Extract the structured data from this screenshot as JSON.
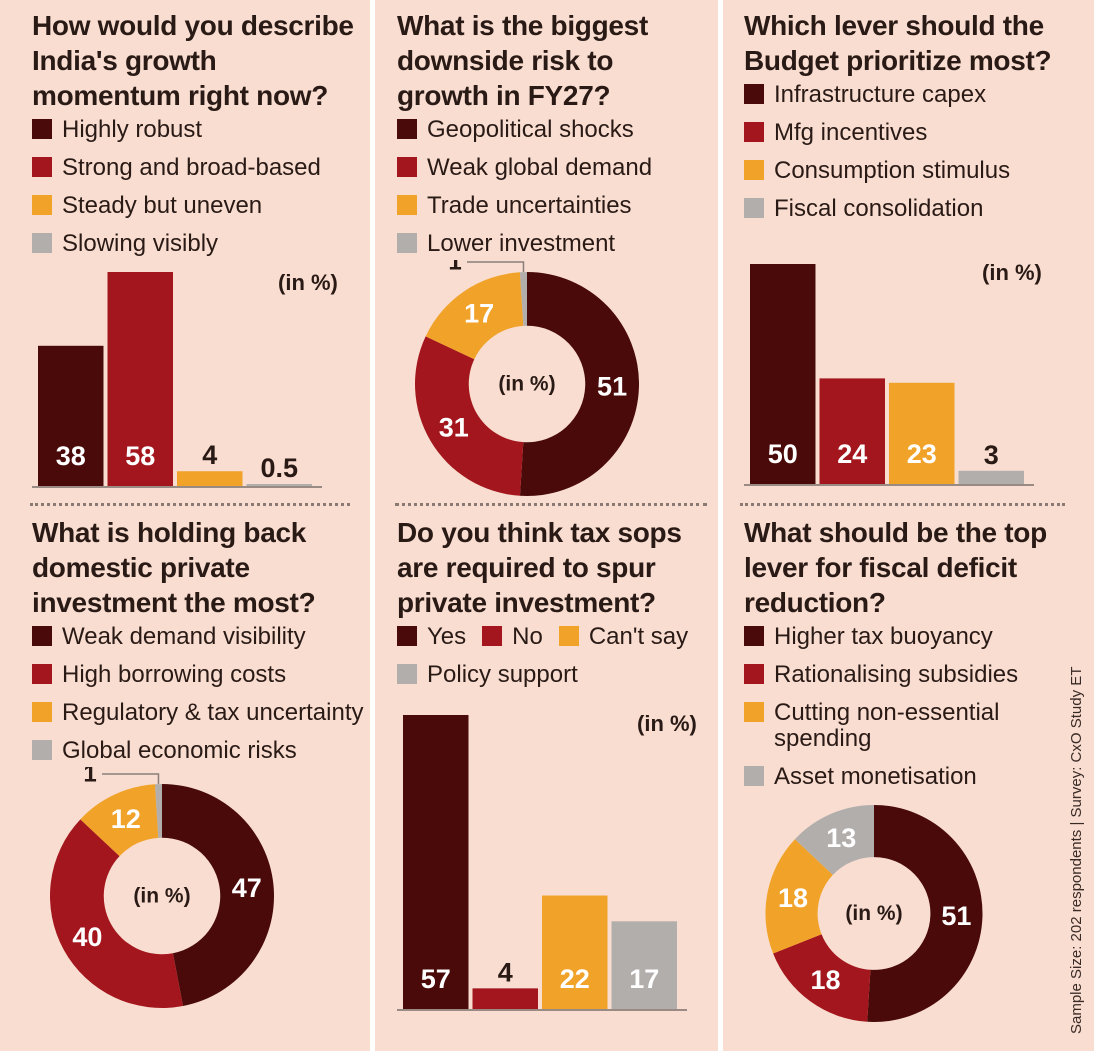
{
  "colors": {
    "dark": "#4a0a09",
    "red": "#a3161d",
    "orange": "#f1a229",
    "gray": "#b2aeac"
  },
  "unit_label": "(in %)",
  "source_note": "Sample Size: 202 respondents | Survey: CxO Study ET",
  "chart_data": [
    {
      "type": "bar",
      "title": "How would you describe India's growth momentum right now?",
      "categories": [
        "Highly robust",
        "Strong and broad-based",
        "Steady but uneven",
        "Slowing visibly"
      ],
      "values": [
        38,
        58,
        4,
        0.5
      ],
      "value_labels": [
        "38",
        "58",
        "4",
        "0.5"
      ],
      "ylim": [
        0,
        58
      ],
      "unit": "(in %)"
    },
    {
      "type": "pie",
      "title": "What is the biggest downside risk to growth in FY27?",
      "categories": [
        "Geopolitical shocks",
        "Weak global demand",
        "Trade uncertainties",
        "Lower investment"
      ],
      "values": [
        51,
        31,
        17,
        1
      ],
      "value_labels": [
        "51",
        "31",
        "17",
        "1"
      ],
      "unit": "(in %)"
    },
    {
      "type": "bar",
      "title": "Which lever should the Budget prioritize most?",
      "categories": [
        "Infrastructure capex",
        "Mfg incentives",
        "Consumption stimulus",
        "Fiscal consolidation"
      ],
      "values": [
        50,
        24,
        23,
        3
      ],
      "value_labels": [
        "50",
        "24",
        "23",
        "3"
      ],
      "ylim": [
        0,
        50
      ],
      "unit": "(in %)"
    },
    {
      "type": "pie",
      "title": "What is holding back domestic private investment the most?",
      "categories": [
        "Weak demand visibility",
        "High borrowing costs",
        "Regulatory & tax uncertainty",
        "Global economic risks"
      ],
      "values": [
        47,
        40,
        12,
        1
      ],
      "value_labels": [
        "47",
        "40",
        "12",
        "1"
      ],
      "unit": "(in %)"
    },
    {
      "type": "bar",
      "title": "Do you think tax sops are required to spur private investment?",
      "categories": [
        "Yes",
        "No",
        "Can't say",
        "Policy support"
      ],
      "values": [
        57,
        4,
        22,
        17
      ],
      "value_labels": [
        "57",
        "4",
        "22",
        "17"
      ],
      "ylim": [
        0,
        57
      ],
      "unit": "(in %)"
    },
    {
      "type": "pie",
      "title": "What should be the top lever for fiscal deficit reduction?",
      "categories": [
        "Higher tax buoyancy",
        "Rationalising subsidies",
        "Cutting non-essential spending",
        "Asset monetisation"
      ],
      "values": [
        51,
        18,
        18,
        13
      ],
      "value_labels": [
        "51",
        "18",
        "18",
        "13"
      ],
      "unit": "(in %)"
    }
  ]
}
